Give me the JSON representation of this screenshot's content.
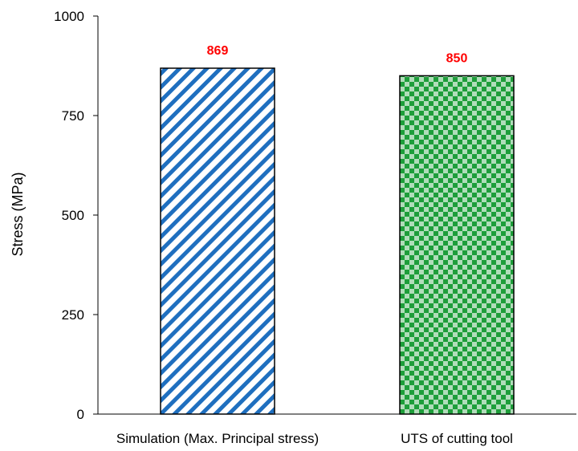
{
  "chart_data": {
    "type": "bar",
    "categories": [
      "Simulation (Max. Principal stress)",
      "UTS of cutting tool"
    ],
    "values": [
      869,
      850
    ],
    "data_labels": [
      "869",
      "850"
    ],
    "title": "",
    "xlabel": "",
    "ylabel": "Stress (MPa)",
    "ylim": [
      0,
      1000
    ],
    "yticks": [
      0,
      250,
      500,
      750,
      1000
    ],
    "ytick_labels": [
      "0",
      "250",
      "500",
      "750",
      "1000"
    ],
    "grid": false,
    "legend": "none",
    "colors": {
      "bar1_pattern": "#1f6fbf",
      "bar2_pattern": "#1e9e3a",
      "data_label": "#ff0000",
      "axis": "#000000"
    },
    "patterns": [
      "diagonal-stripes",
      "checkerboard"
    ]
  }
}
